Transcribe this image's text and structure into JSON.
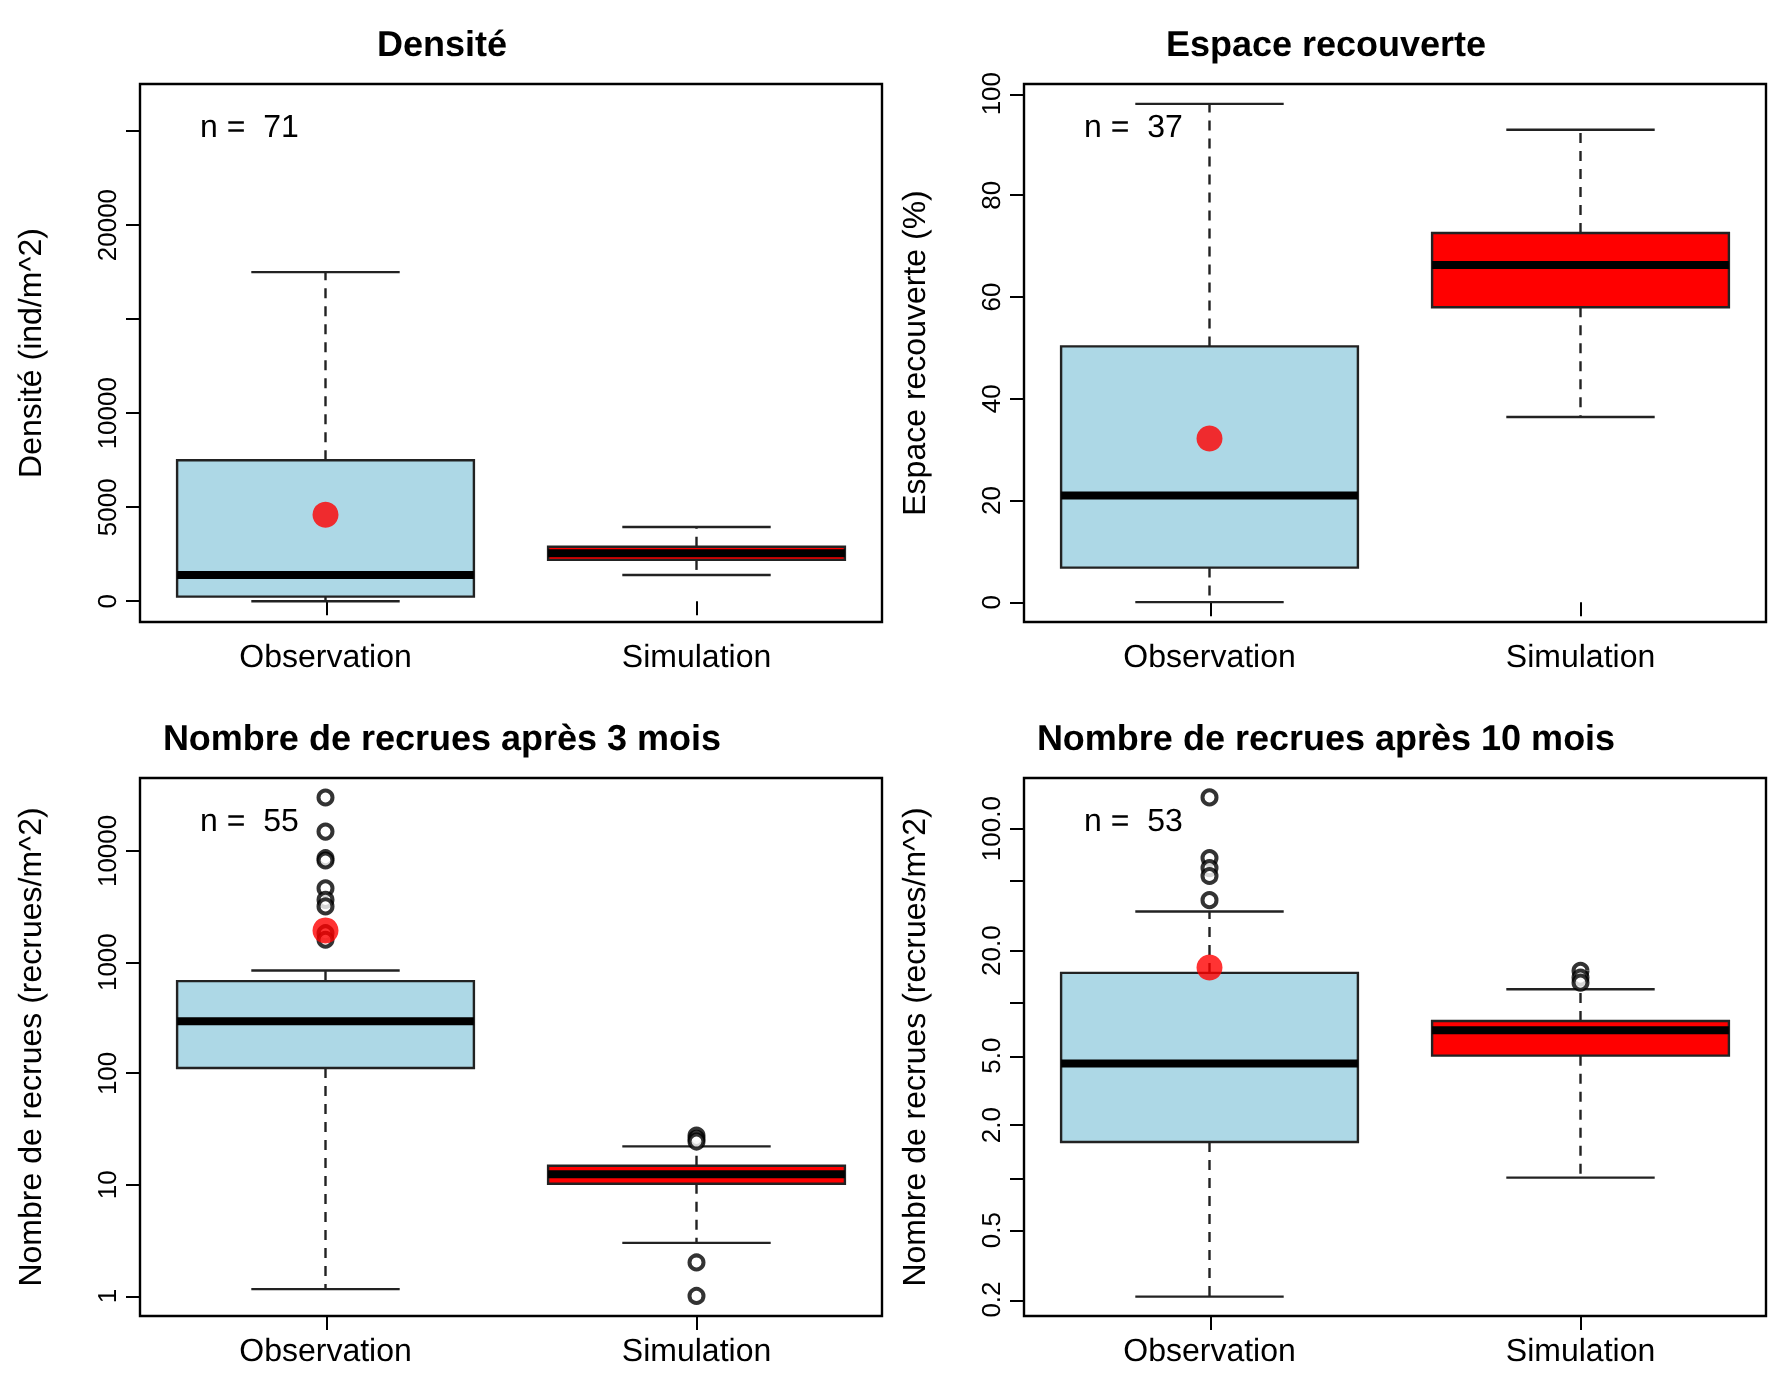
{
  "chart_data": [
    {
      "type": "box",
      "title": "Densité",
      "ylabel": "Densité (ind/m^2)",
      "categories": [
        "Observation",
        "Simulation"
      ],
      "annotations": [
        "n =  71"
      ],
      "ylim": [
        -1100,
        27500
      ],
      "yticks": [
        0,
        5000,
        10000,
        {
          "value": 15000,
          "label": null
        },
        20000,
        {
          "value": 25000,
          "label": null
        }
      ],
      "grid": false,
      "series": [
        {
          "colors": [
            "#add8e6",
            "#ff0000"
          ],
          "boxes": [
            {
              "low": 0,
              "q1": 250,
              "median": 1400,
              "q3": 7500,
              "high": 17500
            },
            {
              "low": 1400,
              "q1": 2200,
              "median": 2550,
              "q3": 2900,
              "high": 3950
            }
          ]
        },
        {
          "type": "scatter",
          "x": [
            "Observation"
          ],
          "values": [
            4600
          ],
          "color": "#ff0000",
          "marker": "circle"
        }
      ]
    },
    {
      "type": "box",
      "title": "Espace recouverte",
      "ylabel": "Espace recouverte (%)",
      "categories": [
        "Observation",
        "Simulation"
      ],
      "annotations": [
        "n =  37"
      ],
      "ylim": [
        -3.9,
        101.9
      ],
      "yticks": [
        0,
        20,
        40,
        60,
        80,
        100
      ],
      "grid": false,
      "series": [
        {
          "colors": [
            "#add8e6",
            "#ff0000"
          ],
          "boxes": [
            {
              "low": 0,
              "q1": 6.8,
              "median": 21,
              "q3": 50.3,
              "high": 98
            },
            {
              "low": 36.4,
              "q1": 58,
              "median": 66.3,
              "q3": 72.6,
              "high": 92.9
            }
          ]
        },
        {
          "type": "scatter",
          "x": [
            "Observation"
          ],
          "values": [
            32.2
          ],
          "color": "#ff0000",
          "marker": "circle"
        }
      ]
    },
    {
      "type": "box",
      "title": "Nombre de recrues après 3 mois",
      "ylabel": "Nombre de recrues (recrues/m^2)",
      "categories": [
        "Observation",
        "Simulation"
      ],
      "annotations": [
        "n =  55"
      ],
      "log": "y",
      "ylim": [
        0.66,
        45200
      ],
      "yticks": [
        1,
        10,
        100,
        1000,
        10000
      ],
      "grid": false,
      "series": [
        {
          "colors": [
            "#add8e6",
            "#ff0000"
          ],
          "boxes": [
            {
              "low": 1.15,
              "q1": 112,
              "median": 294,
              "q3": 675,
              "high": 841,
              "outliers": [
                30200,
                14900,
                8600,
                8200,
                4610,
                3630,
                3170,
                1820,
                1590
              ]
            },
            {
              "low": 3,
              "q1": 10.2,
              "median": 12.4,
              "q3": 14.8,
              "high": 22.1,
              "outliers": [
                27.6,
                25.8,
                24.4,
                2,
                1
              ]
            }
          ]
        },
        {
          "type": "scatter",
          "x": [
            "Observation"
          ],
          "values": [
            1930
          ],
          "color": "#ff0000",
          "marker": "circle"
        }
      ]
    },
    {
      "type": "box",
      "title": "Nombre de recrues après 10 mois",
      "ylabel": "Nombre de recrues (recrues/m^2)",
      "categories": [
        "Observation",
        "Simulation"
      ],
      "annotations": [
        "n =  53"
      ],
      "log": "y",
      "ylim": [
        0.161,
        195
      ],
      "yticks": [
        {
          "value": 0.2,
          "label": "0.2"
        },
        {
          "value": 0.5,
          "label": "0.5"
        },
        {
          "value": 1,
          "label": null
        },
        {
          "value": 2,
          "label": "2.0"
        },
        {
          "value": 5,
          "label": "5.0"
        },
        {
          "value": 10,
          "label": null
        },
        {
          "value": 20,
          "label": "20.0"
        },
        {
          "value": 50,
          "label": null
        },
        {
          "value": 100,
          "label": "100.0"
        }
      ],
      "grid": false,
      "series": [
        {
          "colors": [
            "#add8e6",
            "#ff0000"
          ],
          "boxes": [
            {
              "low": 0.208,
              "q1": 1.6,
              "median": 4.5,
              "q3": 14.9,
              "high": 33.5,
              "outliers": [
                151,
                67.8,
                59.4,
                53.5,
                38.9
              ]
            },
            {
              "low": 1,
              "q1": 5,
              "median": 7,
              "q3": 7.9,
              "high": 12,
              "outliers": [
                15.3,
                14,
                13.1
              ]
            }
          ]
        },
        {
          "type": "scatter",
          "x": [
            "Observation"
          ],
          "values": [
            16
          ],
          "color": "#ff0000",
          "marker": "circle"
        }
      ]
    }
  ]
}
